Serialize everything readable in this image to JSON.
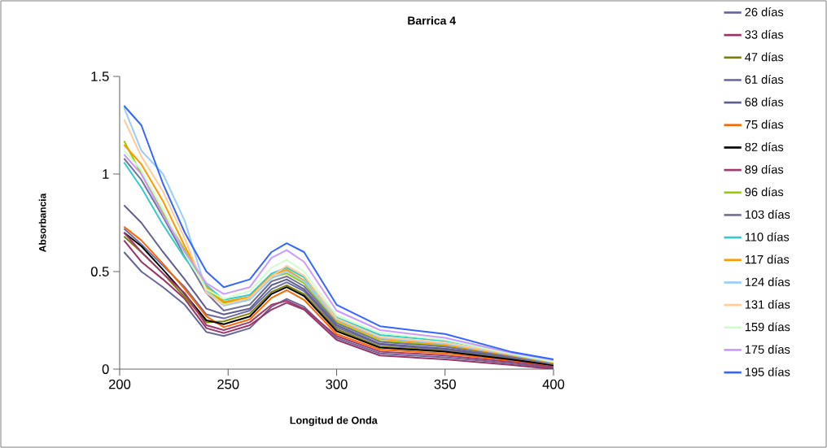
{
  "chart_data": {
    "type": "line",
    "title": "Barrica 4",
    "xlabel": "Longitud de Onda",
    "ylabel": "Absorbancia",
    "x": [
      202,
      210,
      220,
      230,
      240,
      248,
      260,
      270,
      277,
      285,
      300,
      320,
      350,
      380,
      400
    ],
    "xlim": [
      200,
      400
    ],
    "ylim": [
      0,
      1.5
    ],
    "xticks": [
      200,
      250,
      300,
      350,
      400
    ],
    "yticks": [
      0,
      0.5,
      1,
      1.5
    ],
    "legend": "right",
    "line_style": "solid",
    "series": [
      {
        "name": "26 días",
        "color": "#666699",
        "values": [
          0.6,
          0.5,
          0.42,
          0.33,
          0.19,
          0.17,
          0.21,
          0.32,
          0.36,
          0.32,
          0.16,
          0.08,
          0.06,
          0.03,
          0.005
        ]
      },
      {
        "name": "33 días",
        "color": "#993366",
        "values": [
          0.66,
          0.55,
          0.46,
          0.36,
          0.21,
          0.185,
          0.225,
          0.305,
          0.34,
          0.305,
          0.15,
          0.07,
          0.05,
          0.022,
          0.0
        ]
      },
      {
        "name": "47 días",
        "color": "#808000",
        "values": [
          0.68,
          0.6,
          0.49,
          0.37,
          0.24,
          0.245,
          0.285,
          0.395,
          0.43,
          0.385,
          0.205,
          0.115,
          0.095,
          0.055,
          0.018
        ]
      },
      {
        "name": "61 días",
        "color": "#6e6ea4",
        "values": [
          0.72,
          0.64,
          0.53,
          0.42,
          0.28,
          0.26,
          0.3,
          0.41,
          0.445,
          0.4,
          0.215,
          0.125,
          0.1,
          0.06,
          0.025
        ]
      },
      {
        "name": "68 días",
        "color": "#5e5e90",
        "values": [
          0.84,
          0.75,
          0.6,
          0.46,
          0.31,
          0.28,
          0.31,
          0.43,
          0.46,
          0.41,
          0.225,
          0.13,
          0.105,
          0.062,
          0.027
        ]
      },
      {
        "name": "75 días",
        "color": "#ff6600",
        "values": [
          0.73,
          0.66,
          0.54,
          0.41,
          0.27,
          0.215,
          0.255,
          0.365,
          0.405,
          0.355,
          0.18,
          0.1,
          0.08,
          0.045,
          0.015
        ]
      },
      {
        "name": "82 días",
        "color": "#000000",
        "values": [
          0.7,
          0.63,
          0.51,
          0.385,
          0.25,
          0.23,
          0.27,
          0.385,
          0.42,
          0.375,
          0.195,
          0.11,
          0.09,
          0.05,
          0.02
        ]
      },
      {
        "name": "89 días",
        "color": "#a33a6e",
        "values": [
          0.7,
          0.6,
          0.49,
          0.39,
          0.225,
          0.2,
          0.24,
          0.33,
          0.35,
          0.31,
          0.17,
          0.09,
          0.07,
          0.038,
          0.01
        ]
      },
      {
        "name": "96 días",
        "color": "#99cc00",
        "values": [
          1.17,
          1.0,
          0.8,
          0.61,
          0.41,
          0.34,
          0.36,
          0.47,
          0.49,
          0.44,
          0.24,
          0.145,
          0.12,
          0.07,
          0.03
        ]
      },
      {
        "name": "103 días",
        "color": "#727298",
        "values": [
          1.08,
          0.97,
          0.78,
          0.58,
          0.39,
          0.3,
          0.33,
          0.45,
          0.475,
          0.425,
          0.235,
          0.14,
          0.115,
          0.065,
          0.025
        ]
      },
      {
        "name": "110 días",
        "color": "#33cccc",
        "values": [
          1.06,
          0.93,
          0.74,
          0.57,
          0.43,
          0.355,
          0.38,
          0.49,
          0.52,
          0.47,
          0.265,
          0.175,
          0.145,
          0.085,
          0.04
        ]
      },
      {
        "name": "117 días",
        "color": "#ff9900",
        "values": [
          1.15,
          1.05,
          0.86,
          0.63,
          0.42,
          0.345,
          0.37,
          0.48,
          0.51,
          0.455,
          0.25,
          0.155,
          0.125,
          0.072,
          0.032
        ]
      },
      {
        "name": "124 días",
        "color": "#99ccff",
        "values": [
          1.34,
          1.12,
          1.0,
          0.76,
          0.4,
          0.325,
          0.355,
          0.465,
          0.5,
          0.45,
          0.255,
          0.16,
          0.13,
          0.075,
          0.035
        ]
      },
      {
        "name": "131 días",
        "color": "#ffcc99",
        "values": [
          1.28,
          1.09,
          0.91,
          0.67,
          0.39,
          0.33,
          0.365,
          0.475,
          0.53,
          0.48,
          0.26,
          0.165,
          0.135,
          0.078,
          0.045
        ]
      },
      {
        "name": "159 días",
        "color": "#ccffcc",
        "values": [
          1.12,
          1.02,
          0.82,
          0.59,
          0.41,
          0.36,
          0.4,
          0.52,
          0.56,
          0.5,
          0.275,
          0.185,
          0.15,
          0.08,
          0.038
        ]
      },
      {
        "name": "175 días",
        "color": "#cc99ff",
        "values": [
          1.1,
          1.0,
          0.79,
          0.6,
          0.44,
          0.385,
          0.42,
          0.57,
          0.61,
          0.55,
          0.3,
          0.2,
          0.16,
          0.085,
          0.048
        ]
      },
      {
        "name": "195 días",
        "color": "#3366ff",
        "values": [
          1.35,
          1.25,
          0.95,
          0.7,
          0.5,
          0.42,
          0.46,
          0.6,
          0.645,
          0.6,
          0.33,
          0.22,
          0.18,
          0.09,
          0.05
        ]
      }
    ]
  }
}
